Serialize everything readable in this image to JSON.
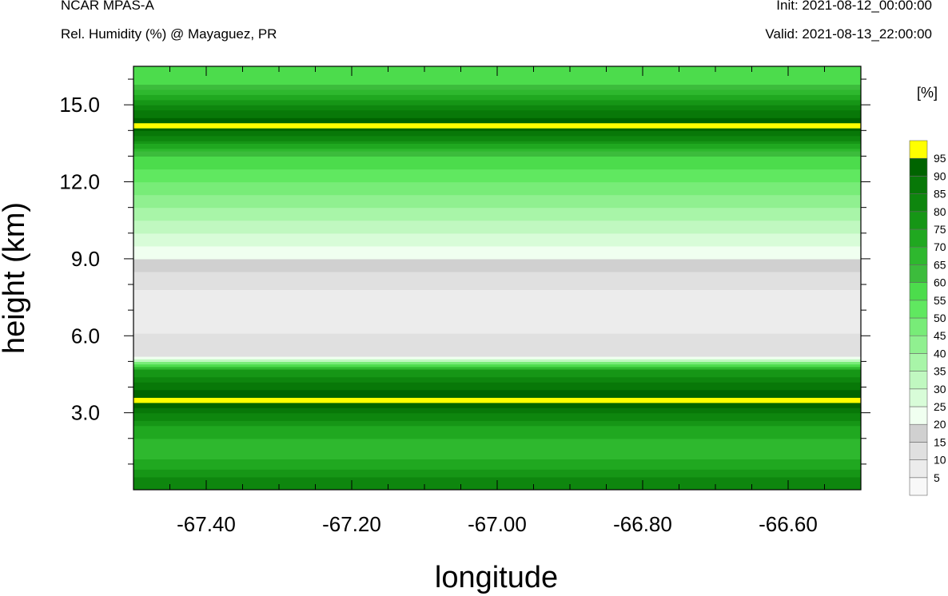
{
  "header": {
    "model": "NCAR MPAS-A",
    "field": "Rel. Humidity (%) @ Mayaguez, PR",
    "init": "Init: 2021-08-12_00:00:00",
    "valid": "Valid: 2021-08-13_22:00:00"
  },
  "chart_data": {
    "type": "heatmap",
    "xlabel": "longitude",
    "ylabel": "height (km)",
    "xlim": [
      -67.5,
      -66.5
    ],
    "ylim": [
      0,
      16.5
    ],
    "xticks": [
      "-67.40",
      "-67.20",
      "-67.00",
      "-66.80",
      "-66.60"
    ],
    "xtick_values": [
      -67.4,
      -67.2,
      -67.0,
      -66.8,
      -66.6
    ],
    "yticks": [
      "3.0",
      "6.0",
      "9.0",
      "12.0",
      "15.0"
    ],
    "ytick_values": [
      3,
      6,
      9,
      12,
      15
    ],
    "colorbar": {
      "unit": "[%]",
      "labels": [
        "5",
        "10",
        "15",
        "20",
        "25",
        "30",
        "35",
        "40",
        "45",
        "50",
        "55",
        "60",
        "65",
        "70",
        "75",
        "80",
        "85",
        "90",
        "95"
      ],
      "colors": [
        "#f8f8f8",
        "#ececec",
        "#e0e0e0",
        "#d0d0d0",
        "#f0fff0",
        "#d8fcd8",
        "#c0f8c0",
        "#a8f5a8",
        "#90f090",
        "#78ec78",
        "#60e860",
        "#4cdc4c",
        "#3cbc3c",
        "#2eb82e",
        "#20a820",
        "#169616",
        "#0e860e",
        "#087808",
        "#006400",
        "#ffff00"
      ]
    },
    "rh_profile_west": [
      {
        "height": 0.5,
        "rh": 80
      },
      {
        "height": 1.5,
        "rh": 65
      },
      {
        "height": 2.5,
        "rh": 75
      },
      {
        "height": 3.5,
        "rh": 97
      },
      {
        "height": 4.7,
        "rh": 75
      },
      {
        "height": 5.2,
        "rh": 15
      },
      {
        "height": 7.0,
        "rh": 5
      },
      {
        "height": 8.5,
        "rh": 15
      },
      {
        "height": 10.0,
        "rh": 30
      },
      {
        "height": 11.5,
        "rh": 45
      },
      {
        "height": 13.0,
        "rh": 60
      },
      {
        "height": 14.2,
        "rh": 97
      },
      {
        "height": 15.0,
        "rh": 80
      },
      {
        "height": 16.0,
        "rh": 55
      }
    ]
  }
}
